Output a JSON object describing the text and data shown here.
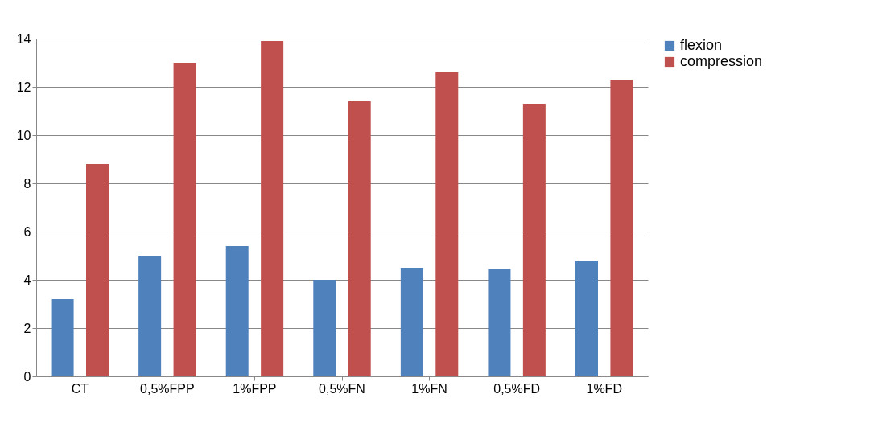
{
  "chart_data": {
    "type": "bar",
    "categories": [
      "CT",
      "0,5%FPP",
      "1%FPP",
      "0,5%FN",
      "1%FN",
      "0,5%FD",
      "1%FD"
    ],
    "series": [
      {
        "name": "flexion",
        "color": "#4f81bd",
        "values": [
          3.2,
          5.0,
          5.4,
          4.0,
          4.5,
          4.45,
          4.8
        ]
      },
      {
        "name": "compression",
        "color": "#c0504d",
        "values": [
          8.8,
          13.0,
          13.9,
          11.4,
          12.6,
          11.3,
          12.3
        ]
      }
    ],
    "ylim": [
      0,
      14
    ],
    "yticks": [
      0,
      2,
      4,
      6,
      8,
      10,
      12,
      14
    ],
    "grid": "y",
    "legend": "right"
  }
}
